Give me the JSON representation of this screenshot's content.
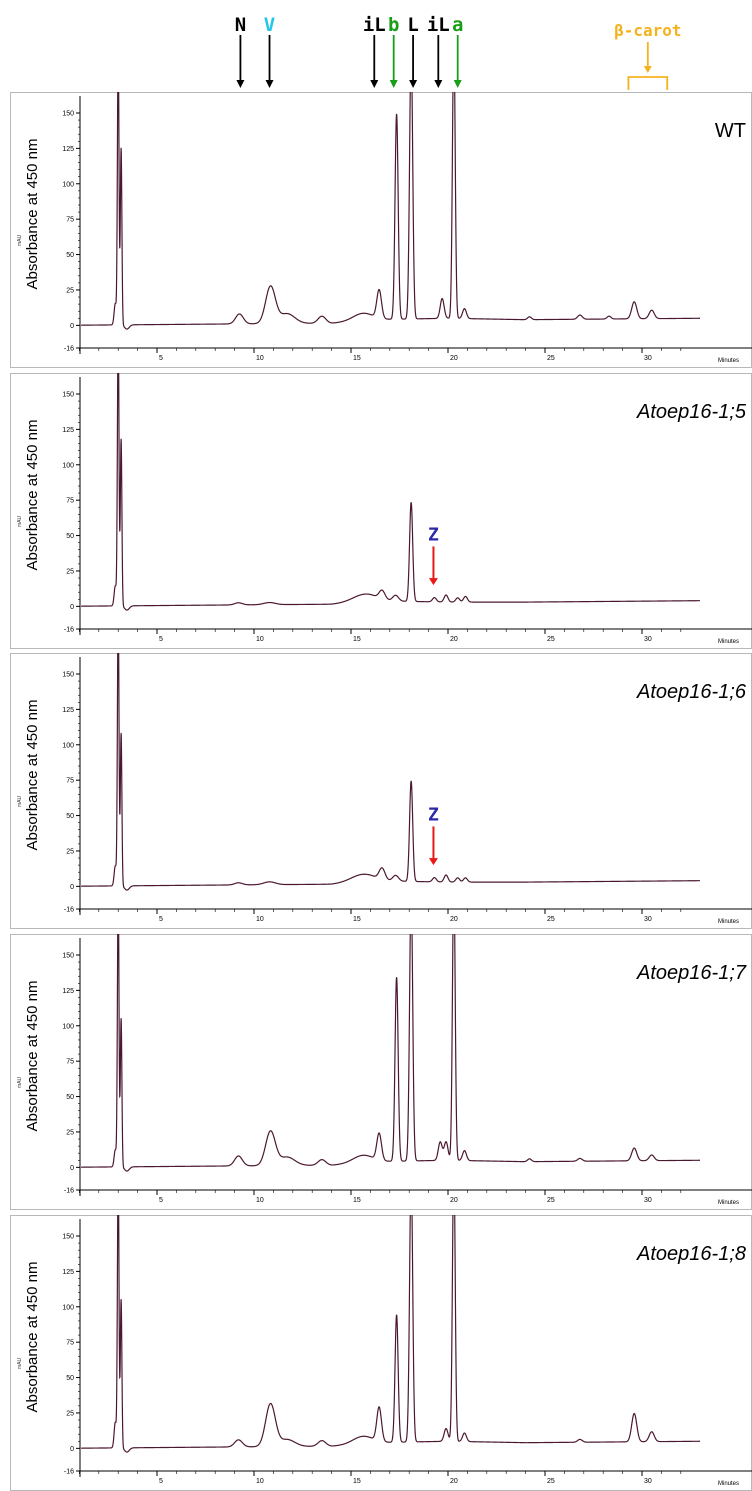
{
  "annotations": {
    "markers": [
      {
        "label": "N",
        "x": 9.3,
        "color": "#000000",
        "arrow_color": "#000000"
      },
      {
        "label": "V",
        "x": 10.8,
        "color": "#22c8e8",
        "arrow_color": "#000000"
      },
      {
        "label": "iL",
        "x": 16.2,
        "color": "#000000",
        "arrow_color": "#000000"
      },
      {
        "label": "b",
        "x": 17.2,
        "color": "#1a9e1a",
        "arrow_color": "#1a9e1a"
      },
      {
        "label": "L",
        "x": 18.2,
        "color": "#000000",
        "arrow_color": "#000000"
      },
      {
        "label": "iL",
        "x": 19.5,
        "color": "#000000",
        "arrow_color": "#000000"
      },
      {
        "label": "a",
        "x": 20.5,
        "color": "#1a9e1a",
        "arrow_color": "#1a9e1a"
      }
    ],
    "beta_carot": {
      "label": "β-carot",
      "x_range": [
        29.3,
        31.3
      ],
      "color": "#f5b21f"
    }
  },
  "chart_data": [
    {
      "type": "line",
      "panel_label": "WT",
      "ylabel": "Absorbance at 450 nm",
      "yunit": "mAU",
      "xunit": "Minutes",
      "xlim": [
        0,
        33
      ],
      "ylim": [
        -16,
        162
      ],
      "xticks": [
        5,
        10,
        15,
        20,
        25,
        30
      ],
      "yticks": [
        -16,
        0,
        25,
        50,
        75,
        100,
        125,
        150
      ],
      "line_color": "#4a1830",
      "baseline": [
        [
          0,
          0
        ],
        [
          9,
          1
        ],
        [
          14,
          1.5
        ],
        [
          16,
          4
        ],
        [
          20,
          5
        ],
        [
          24,
          4
        ],
        [
          33,
          5
        ]
      ],
      "peaks": [
        {
          "x": 2.85,
          "h": 15,
          "w": 0.06
        },
        {
          "x": 3.0,
          "h": 200,
          "w": 0.04
        },
        {
          "x": 3.15,
          "h": 125,
          "w": 0.04
        },
        {
          "x": 9.25,
          "h": 7,
          "w": 0.2
        },
        {
          "x": 10.85,
          "h": 26,
          "w": 0.25
        },
        {
          "x": 11.7,
          "h": 7,
          "w": 0.4
        },
        {
          "x": 13.5,
          "h": 5,
          "w": 0.2
        },
        {
          "x": 15.6,
          "h": 5,
          "w": 0.5
        },
        {
          "x": 16.45,
          "h": 20,
          "w": 0.12
        },
        {
          "x": 17.35,
          "h": 145,
          "w": 0.08
        },
        {
          "x": 18.1,
          "h": 190,
          "w": 0.08
        },
        {
          "x": 19.7,
          "h": 14,
          "w": 0.1
        },
        {
          "x": 20.3,
          "h": 200,
          "w": 0.07
        },
        {
          "x": 20.85,
          "h": 7,
          "w": 0.1
        },
        {
          "x": 24.2,
          "h": 2,
          "w": 0.1
        },
        {
          "x": 26.8,
          "h": 3,
          "w": 0.12
        },
        {
          "x": 28.3,
          "h": 2,
          "w": 0.1
        },
        {
          "x": 29.6,
          "h": 12,
          "w": 0.13
        },
        {
          "x": 30.5,
          "h": 6,
          "w": 0.13
        }
      ]
    },
    {
      "type": "line",
      "panel_label": "Atoep16-1;5",
      "ylabel": "Absorbance at 450 nm",
      "yunit": "mAU",
      "xunit": "Minutes",
      "xlim": [
        0,
        33
      ],
      "ylim": [
        -16,
        162
      ],
      "xticks": [
        5,
        10,
        15,
        20,
        25,
        30
      ],
      "yticks": [
        -16,
        0,
        25,
        50,
        75,
        100,
        125,
        150
      ],
      "line_color": "#4a1830",
      "z_marker": {
        "label": "Z",
        "x": 19.25,
        "color": "#2a2aa8",
        "arrow_color": "#e81818",
        "y_top": 48,
        "y_bottom": 15
      },
      "baseline": [
        [
          0,
          0
        ],
        [
          9,
          1
        ],
        [
          14,
          1.5
        ],
        [
          16,
          4
        ],
        [
          20,
          3
        ],
        [
          24,
          3
        ],
        [
          33,
          4
        ]
      ],
      "peaks": [
        {
          "x": 2.85,
          "h": 14,
          "w": 0.06
        },
        {
          "x": 3.0,
          "h": 200,
          "w": 0.04
        },
        {
          "x": 3.15,
          "h": 118,
          "w": 0.04
        },
        {
          "x": 9.2,
          "h": 1.5,
          "w": 0.2
        },
        {
          "x": 10.8,
          "h": 1.5,
          "w": 0.3
        },
        {
          "x": 15.7,
          "h": 5,
          "w": 0.6
        },
        {
          "x": 16.6,
          "h": 6,
          "w": 0.15
        },
        {
          "x": 17.3,
          "h": 4,
          "w": 0.15
        },
        {
          "x": 18.1,
          "h": 70,
          "w": 0.08
        },
        {
          "x": 19.3,
          "h": 3,
          "w": 0.1
        },
        {
          "x": 19.9,
          "h": 5,
          "w": 0.1
        },
        {
          "x": 20.5,
          "h": 3,
          "w": 0.1
        },
        {
          "x": 20.9,
          "h": 4,
          "w": 0.1
        }
      ]
    },
    {
      "type": "line",
      "panel_label": "Atoep16-1;6",
      "ylabel": "Absorbance at 450 nm",
      "yunit": "mAU",
      "xunit": "Minutes",
      "xlim": [
        0,
        33
      ],
      "ylim": [
        -16,
        162
      ],
      "xticks": [
        5,
        10,
        15,
        20,
        25,
        30
      ],
      "yticks": [
        -16,
        0,
        25,
        50,
        75,
        100,
        125,
        150
      ],
      "line_color": "#4a1830",
      "z_marker": {
        "label": "Z",
        "x": 19.25,
        "color": "#2a2aa8",
        "arrow_color": "#e81818",
        "y_top": 48,
        "y_bottom": 15
      },
      "baseline": [
        [
          0,
          0
        ],
        [
          9,
          1
        ],
        [
          14,
          1.5
        ],
        [
          16,
          4
        ],
        [
          20,
          3
        ],
        [
          24,
          3
        ],
        [
          33,
          4
        ]
      ],
      "peaks": [
        {
          "x": 2.85,
          "h": 14,
          "w": 0.06
        },
        {
          "x": 3.0,
          "h": 200,
          "w": 0.04
        },
        {
          "x": 3.15,
          "h": 108,
          "w": 0.04
        },
        {
          "x": 9.2,
          "h": 1.5,
          "w": 0.2
        },
        {
          "x": 10.8,
          "h": 2,
          "w": 0.3
        },
        {
          "x": 15.6,
          "h": 5,
          "w": 0.6
        },
        {
          "x": 16.6,
          "h": 8,
          "w": 0.15
        },
        {
          "x": 17.3,
          "h": 4,
          "w": 0.15
        },
        {
          "x": 18.1,
          "h": 71,
          "w": 0.08
        },
        {
          "x": 19.3,
          "h": 3,
          "w": 0.1
        },
        {
          "x": 19.9,
          "h": 5,
          "w": 0.1
        },
        {
          "x": 20.5,
          "h": 3,
          "w": 0.1
        },
        {
          "x": 20.9,
          "h": 3,
          "w": 0.1
        }
      ]
    },
    {
      "type": "line",
      "panel_label": "Atoep16-1;7",
      "ylabel": "Absorbance at 450 nm",
      "yunit": "mAU",
      "xunit": "Minutes",
      "xlim": [
        0,
        33
      ],
      "ylim": [
        -16,
        162
      ],
      "xticks": [
        5,
        10,
        15,
        20,
        25,
        30
      ],
      "yticks": [
        -16,
        0,
        25,
        50,
        75,
        100,
        125,
        150
      ],
      "line_color": "#4a1830",
      "baseline": [
        [
          0,
          0
        ],
        [
          9,
          1
        ],
        [
          14,
          1.5
        ],
        [
          16,
          4
        ],
        [
          20,
          5
        ],
        [
          24,
          4
        ],
        [
          33,
          5
        ]
      ],
      "peaks": [
        {
          "x": 2.85,
          "h": 12,
          "w": 0.06
        },
        {
          "x": 3.0,
          "h": 200,
          "w": 0.04
        },
        {
          "x": 3.15,
          "h": 105,
          "w": 0.04
        },
        {
          "x": 9.2,
          "h": 7,
          "w": 0.2
        },
        {
          "x": 10.85,
          "h": 24,
          "w": 0.25
        },
        {
          "x": 11.7,
          "h": 6,
          "w": 0.4
        },
        {
          "x": 13.5,
          "h": 4,
          "w": 0.2
        },
        {
          "x": 15.6,
          "h": 5,
          "w": 0.5
        },
        {
          "x": 16.45,
          "h": 19,
          "w": 0.12
        },
        {
          "x": 17.35,
          "h": 130,
          "w": 0.08
        },
        {
          "x": 18.1,
          "h": 190,
          "w": 0.08
        },
        {
          "x": 19.6,
          "h": 13,
          "w": 0.1
        },
        {
          "x": 19.9,
          "h": 13,
          "w": 0.1
        },
        {
          "x": 20.3,
          "h": 200,
          "w": 0.07
        },
        {
          "x": 20.85,
          "h": 7,
          "w": 0.1
        },
        {
          "x": 24.2,
          "h": 2,
          "w": 0.1
        },
        {
          "x": 26.8,
          "h": 2,
          "w": 0.12
        },
        {
          "x": 29.6,
          "h": 9,
          "w": 0.13
        },
        {
          "x": 30.5,
          "h": 4,
          "w": 0.13
        }
      ]
    },
    {
      "type": "line",
      "panel_label": "Atoep16-1;8",
      "ylabel": "Absorbance at 450 nm",
      "yunit": "mAU",
      "xunit": "Minutes",
      "xlim": [
        0,
        33
      ],
      "ylim": [
        -16,
        162
      ],
      "xticks": [
        5,
        10,
        15,
        20,
        25,
        30
      ],
      "yticks": [
        -16,
        0,
        25,
        50,
        75,
        100,
        125,
        150
      ],
      "line_color": "#4a1830",
      "baseline": [
        [
          0,
          0
        ],
        [
          9,
          1
        ],
        [
          14,
          1.5
        ],
        [
          16,
          4
        ],
        [
          20,
          5
        ],
        [
          24,
          4
        ],
        [
          33,
          5
        ]
      ],
      "peaks": [
        {
          "x": 2.85,
          "h": 18,
          "w": 0.06
        },
        {
          "x": 3.0,
          "h": 200,
          "w": 0.04
        },
        {
          "x": 3.15,
          "h": 105,
          "w": 0.04
        },
        {
          "x": 9.2,
          "h": 5,
          "w": 0.2
        },
        {
          "x": 10.85,
          "h": 30,
          "w": 0.25
        },
        {
          "x": 11.7,
          "h": 5,
          "w": 0.4
        },
        {
          "x": 13.5,
          "h": 4,
          "w": 0.2
        },
        {
          "x": 15.6,
          "h": 5,
          "w": 0.5
        },
        {
          "x": 16.45,
          "h": 24,
          "w": 0.12
        },
        {
          "x": 17.35,
          "h": 90,
          "w": 0.08
        },
        {
          "x": 18.1,
          "h": 190,
          "w": 0.08
        },
        {
          "x": 19.9,
          "h": 9,
          "w": 0.1
        },
        {
          "x": 20.3,
          "h": 200,
          "w": 0.07
        },
        {
          "x": 20.85,
          "h": 6,
          "w": 0.1
        },
        {
          "x": 26.8,
          "h": 2,
          "w": 0.12
        },
        {
          "x": 29.6,
          "h": 20,
          "w": 0.13
        },
        {
          "x": 30.5,
          "h": 7,
          "w": 0.13
        }
      ]
    }
  ]
}
